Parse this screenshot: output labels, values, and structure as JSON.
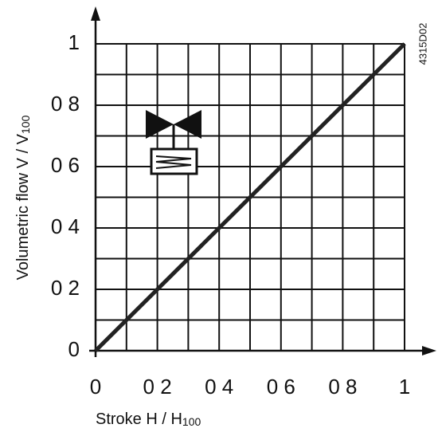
{
  "chart_data": {
    "type": "line",
    "xlabel": {
      "text": "Stroke H / H",
      "sub": "100"
    },
    "ylabel": {
      "text": "Volumetric flow V / V",
      "sub": "100"
    },
    "annotation": "4315D02",
    "x": [
      0,
      1
    ],
    "series": [
      {
        "color": "#222222",
        "values": [
          0,
          1
        ]
      }
    ],
    "xlim": [
      0,
      1
    ],
    "ylim": [
      0,
      1
    ],
    "xticks": [
      0,
      {
        "value": 0.2,
        "label": "0 2"
      },
      {
        "value": 0.4,
        "label": "0 4"
      },
      {
        "value": 0.6,
        "label": "0 6"
      },
      {
        "value": 0.8,
        "label": "0 8"
      },
      1
    ],
    "yticks": [
      0,
      {
        "value": 0.2,
        "label": "0 2"
      },
      {
        "value": 0.4,
        "label": "0 4"
      },
      {
        "value": 0.6,
        "label": "0 6"
      },
      {
        "value": 0.8,
        "label": "0 8"
      },
      1
    ],
    "minor_grid": [
      0.1,
      0.3,
      0.5,
      0.7,
      0.9
    ],
    "grid": true
  }
}
